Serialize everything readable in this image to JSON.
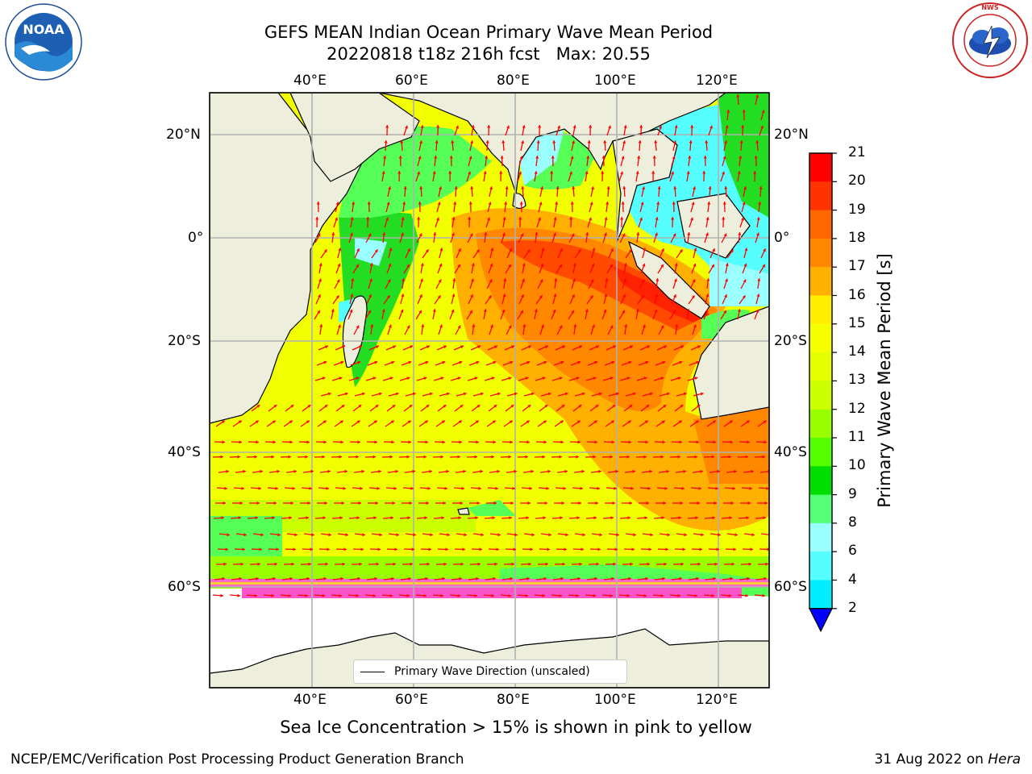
{
  "header": {
    "title": "GEFS MEAN Indian Ocean Primary Wave Mean Period",
    "subtitle": "20220818 t18z 216h fcst   Max: 20.55"
  },
  "logos": {
    "left": {
      "icon": "noaa-logo",
      "text": "NOAA",
      "ring_text": "NATIONAL OCEANIC AND ATMOSPHERIC ADMINISTRATION · U.S. DEPARTMENT OF COMMERCE"
    },
    "right": {
      "icon": "national-weather-service-logo",
      "ring_text": "NATIONAL WEATHER SERVICE"
    }
  },
  "map": {
    "region": "Indian Ocean",
    "top_lon_labels": [
      "40°E",
      "60°E",
      "80°E",
      "100°E",
      "120°E"
    ],
    "bottom_lon_labels": [
      "40°E",
      "60°E",
      "80°E",
      "100°E",
      "120°E"
    ],
    "left_lat_labels": [
      "20°N",
      "0°",
      "20°S",
      "40°S",
      "60°S"
    ],
    "right_lat_labels": [
      "20°N",
      "0°",
      "20°S",
      "40°S",
      "60°S"
    ],
    "lon_range": [
      20,
      130
    ],
    "lat_range": [
      -75,
      28
    ],
    "gridlines": true,
    "land_color": "#eeeedd",
    "vector_color": "#ff0000",
    "legend": {
      "label": "Primary Wave Direction (unscaled)",
      "placement": "bottom-center"
    }
  },
  "colorbar": {
    "label": "Primary Wave Mean Period [s]",
    "ticks": [
      "21",
      "20",
      "19",
      "18",
      "17",
      "16",
      "15",
      "14",
      "13",
      "12",
      "11",
      "10",
      "9",
      "8",
      "6",
      "4",
      "2"
    ],
    "colors_top_to_bottom": [
      "#ff0000",
      "#ff3300",
      "#ff6600",
      "#ff8800",
      "#ffb000",
      "#ffee00",
      "#f5ff00",
      "#e6ff00",
      "#ccff00",
      "#99ff00",
      "#55ff00",
      "#00dd00",
      "#55ff77",
      "#99ffff",
      "#55ffff",
      "#00eeff",
      "#0088ff"
    ],
    "under_color": "#0000ff",
    "extend": "min"
  },
  "caption": "Sea Ice Concentration > 15% is shown in pink to yellow",
  "footer": {
    "left": "NCEP/EMC/Verification Post Processing Product Generation Branch",
    "right_prefix": "31 Aug 2022 on ",
    "right_host": "Hera"
  }
}
